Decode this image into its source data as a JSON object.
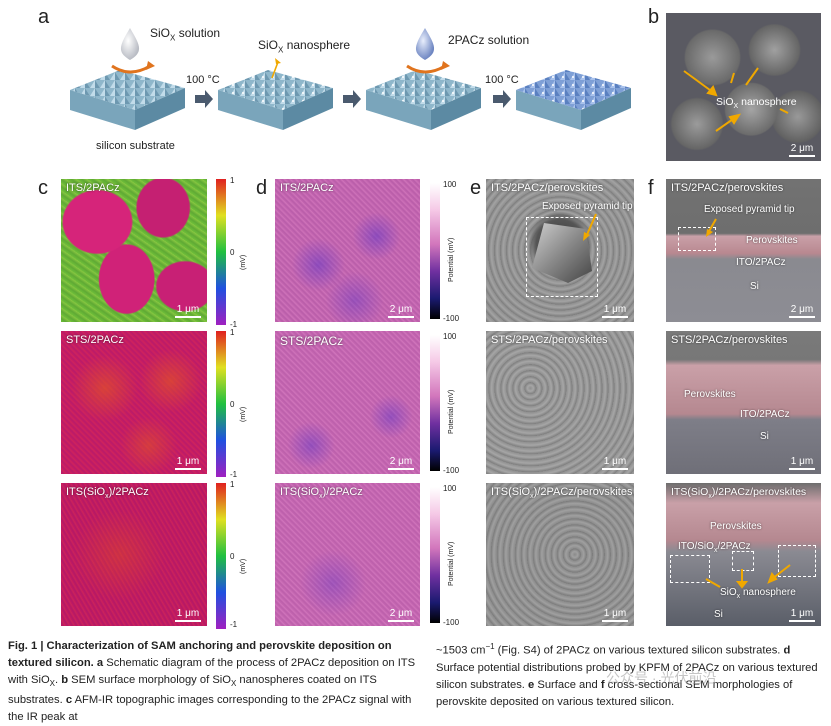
{
  "panel_letters": {
    "a": "a",
    "b": "b",
    "c": "c",
    "d": "d",
    "e": "e",
    "f": "f"
  },
  "schematic": {
    "sio_solution": "SiO",
    "sio_solution_sub": "X",
    "sio_solution_suffix": " solution",
    "nanosphere": "SiO",
    "nanosphere_sub": "X",
    "nanosphere_suffix": " nanosphere",
    "pacz_solution": "2PACz solution",
    "temp1": "100 °C",
    "temp2": "100 °C",
    "substrate": "silicon substrate"
  },
  "panel_b": {
    "label": "SiO",
    "label_sub": "X",
    "label_suffix": " nanosphere",
    "scale": "2 μm"
  },
  "panel_c": {
    "rows": [
      {
        "title": "ITS/2PACz",
        "scale": "1 μm"
      },
      {
        "title": "STS/2PACz",
        "scale": "1 μm"
      },
      {
        "title": "ITS(SiO",
        "title_sub": "x",
        "title_suffix": ")/2PACz",
        "scale": "1 μm"
      }
    ],
    "cbar_top": "1",
    "cbar_mid": "0",
    "cbar_bottom": "-1",
    "cbar_unit": "(mV)"
  },
  "panel_d": {
    "rows": [
      {
        "title": "ITS/2PACz",
        "scale": "2 μm"
      },
      {
        "title": "STS/2PACz",
        "scale": "2 μm"
      },
      {
        "title": "ITS(SiO",
        "title_sub": "x",
        "title_suffix": ")/2PACz",
        "scale": "2 μm"
      }
    ],
    "cbar_top": "100",
    "cbar_bottom": "-100",
    "cbar_unit": "Potential (mV)"
  },
  "panel_e": {
    "rows": [
      {
        "title": "ITS/2PACz/perovskites",
        "annotation": "Exposed pyramid tip",
        "scale": "1 μm"
      },
      {
        "title": "STS/2PACz/perovskites",
        "scale": "1 μm"
      },
      {
        "title": "ITS(SiO",
        "title_sub": "x",
        "title_suffix": ")/2PACz/perovskites",
        "scale": "1 μm"
      }
    ]
  },
  "panel_f": {
    "rows": [
      {
        "title": "ITS/2PACz/perovskites",
        "annotation": "Exposed pyramid tip",
        "layers": [
          "Perovskites",
          "ITO/2PACz",
          "Si"
        ],
        "scale": "2 μm"
      },
      {
        "title": "STS/2PACz/perovskites",
        "layers": [
          "Perovskites",
          "ITO/2PACz",
          "Si"
        ],
        "scale": "1 μm"
      },
      {
        "title": "ITS(SiO",
        "title_sub": "x",
        "title_suffix": ")/2PACz/perovskites",
        "layers": [
          "Perovskites",
          "ITO/SiO",
          "Si"
        ],
        "layer_sub": "x",
        "layer_suffix": "/2PACz",
        "nano": "SiO",
        "nano_sub": "x",
        "nano_suffix": " nanosphere",
        "scale": "1 μm"
      }
    ]
  },
  "caption": {
    "fig": "Fig. 1 | Characterization of SAM anchoring and perovskite deposition on textured silicon.",
    "a_letter": "a",
    "a_text": " Schematic diagram of the process of 2PACz deposition on ITS with SiO",
    "a_sub": "X",
    "b_letter": "b",
    "b_text": " SEM surface morphology of SiO",
    "b_sub": "X",
    "b_suffix": " nanospheres coated on ITS substrates.",
    "c_letter": "c",
    "c_text": " AFM-IR topographic images corresponding to the 2PACz signal with the IR peak at",
    "right1": "~1503 cm",
    "right1_sup": "−1",
    "right1_suffix": " (Fig. S4) of 2PACz on various textured silicon substrates.",
    "d_letter": "d",
    "d_text": " Surface potential distributions probed by KPFM of 2PACz on various textured silicon substrates.",
    "e_letter": "e",
    "e_text": " Surface and ",
    "f_letter": "f",
    "f_text": " cross-sectional SEM morphologies of perovskite deposited on various textured silicon."
  },
  "watermark": "公众号 · 光伏前沿"
}
